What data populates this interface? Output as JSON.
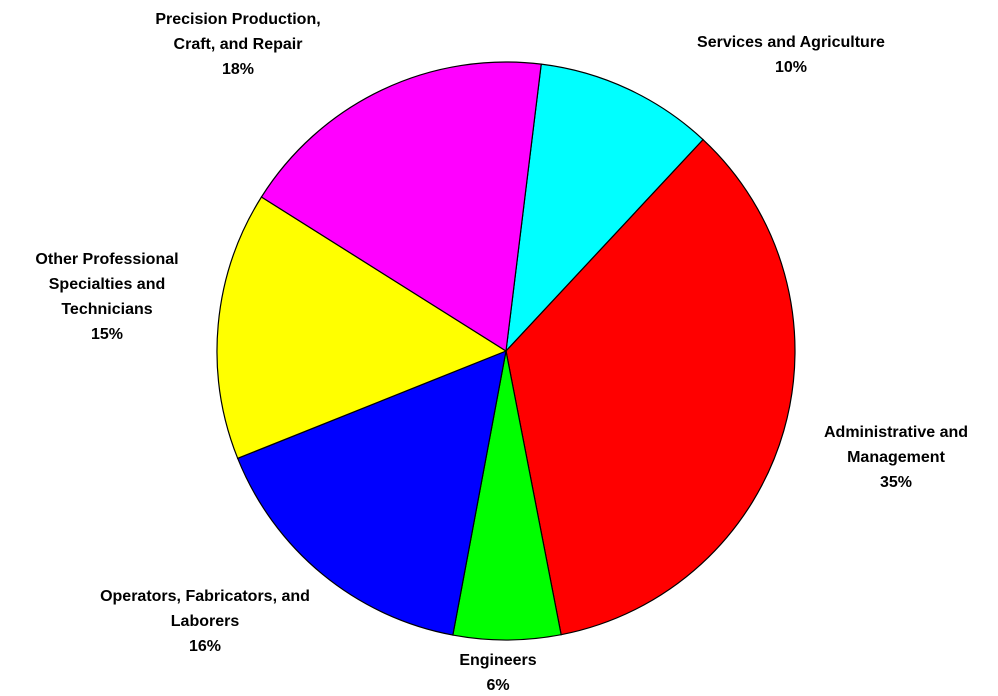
{
  "chart_data": {
    "type": "pie",
    "categories": [
      "Services and Agriculture",
      "Administrative and Management",
      "Engineers",
      "Operators, Fabricators, and Laborers",
      "Other Professional Specialties and Technicians",
      "Precision Production, Craft, and Repair"
    ],
    "values": [
      10,
      35,
      6,
      16,
      15,
      18
    ],
    "value_labels": [
      "10%",
      "35%",
      "6%",
      "16%",
      "15%",
      "18%"
    ],
    "colors": [
      "#00ffff",
      "#ff0000",
      "#00ff00",
      "#0000ff",
      "#ffff00",
      "#ff00ff"
    ]
  }
}
